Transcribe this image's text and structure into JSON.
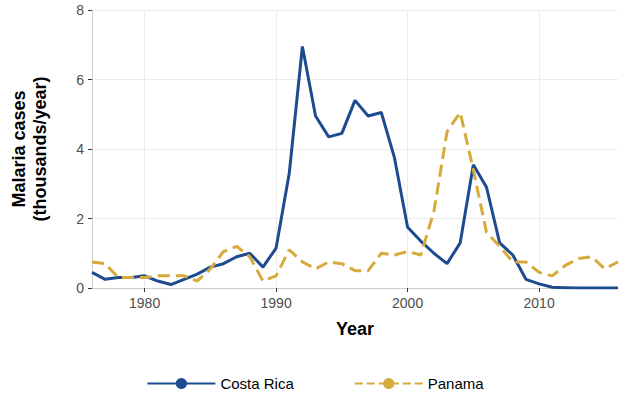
{
  "chart_data": {
    "type": "line",
    "x_label": "Year",
    "y_label": "Malaria cases\n(thousands/year)",
    "x": [
      1976,
      1977,
      1978,
      1979,
      1980,
      1981,
      1982,
      1983,
      1984,
      1985,
      1986,
      1987,
      1988,
      1989,
      1990,
      1991,
      1992,
      1993,
      1994,
      1995,
      1996,
      1997,
      1998,
      1999,
      2000,
      2001,
      2002,
      2003,
      2004,
      2005,
      2006,
      2007,
      2008,
      2009,
      2010,
      2011,
      2012,
      2013,
      2014,
      2015,
      2016
    ],
    "series": [
      {
        "name": "Costa Rica",
        "color": "#1d4b8f",
        "line_style": "solid",
        "values": [
          0.45,
          0.25,
          0.3,
          0.3,
          0.35,
          0.2,
          0.1,
          0.25,
          0.4,
          0.6,
          0.7,
          0.9,
          1.0,
          0.6,
          1.15,
          3.3,
          6.95,
          4.95,
          4.35,
          4.45,
          5.4,
          4.95,
          5.05,
          3.75,
          1.75,
          1.35,
          1.0,
          0.7,
          1.3,
          3.55,
          2.9,
          1.3,
          0.95,
          0.25,
          0.12,
          0.02,
          0.01,
          0.0,
          0.0,
          0.0,
          0.0
        ]
      },
      {
        "name": "Panama",
        "color": "#d6ab3c",
        "line_style": "dashed",
        "values": [
          0.75,
          0.7,
          0.3,
          0.3,
          0.3,
          0.35,
          0.35,
          0.35,
          0.2,
          0.55,
          1.05,
          1.2,
          0.9,
          0.2,
          0.35,
          1.1,
          0.75,
          0.55,
          0.75,
          0.7,
          0.5,
          0.5,
          1.0,
          0.95,
          1.05,
          0.95,
          2.2,
          4.5,
          5.05,
          3.4,
          1.6,
          1.2,
          0.75,
          0.75,
          0.45,
          0.35,
          0.65,
          0.85,
          0.9,
          0.55,
          0.75
        ]
      }
    ],
    "xlim": [
      1976,
      2016
    ],
    "xticks": [
      1980,
      1990,
      2000,
      2010
    ],
    "ylim": [
      0,
      8
    ],
    "yticks": [
      0,
      2,
      4,
      6,
      8
    ],
    "grid": true,
    "legend": "bottom"
  }
}
